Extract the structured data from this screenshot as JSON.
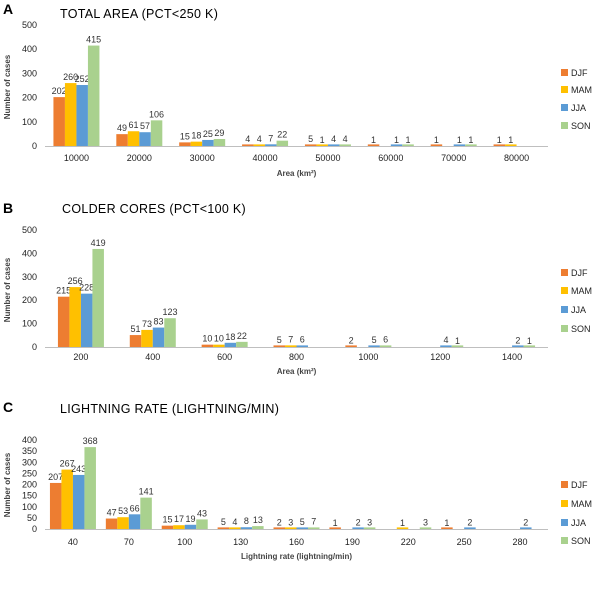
{
  "colors": {
    "DJF": "#ED7D31",
    "MAM": "#FFC000",
    "JJA": "#5B9BD5",
    "SON": "#A9D18E"
  },
  "chart_data": [
    {
      "type": "bar",
      "panel": "A",
      "title": "TOTAL AREA (PCT<250 K)",
      "xlabel": "Area (km²)",
      "ylabel": "Number of cases",
      "ylim": [
        0,
        500
      ],
      "yticks": [
        "0",
        "100",
        "200",
        "300",
        "400",
        "500"
      ],
      "grid": false,
      "legend_position": "right",
      "categories": [
        "10000",
        "20000",
        "30000",
        "40000",
        "50000",
        "60000",
        "70000",
        "80000"
      ],
      "series": [
        {
          "name": "DJF",
          "values": [
            202,
            49,
            15,
            4,
            5,
            1,
            1,
            1
          ]
        },
        {
          "name": "MAM",
          "values": [
            260,
            61,
            18,
            4,
            1,
            0,
            0,
            1
          ]
        },
        {
          "name": "JJA",
          "values": [
            252,
            57,
            25,
            7,
            4,
            1,
            1,
            0
          ]
        },
        {
          "name": "SON",
          "values": [
            415,
            106,
            29,
            22,
            4,
            1,
            1,
            0
          ]
        }
      ],
      "labels": [
        [
          "202",
          "49",
          "15",
          "4",
          "5",
          "1",
          "1",
          "1"
        ],
        [
          "260",
          "61",
          "18",
          "4",
          "1",
          "",
          "",
          "1"
        ],
        [
          "252",
          "57",
          "25",
          "7",
          "4",
          "1",
          "1",
          ""
        ],
        [
          "415",
          "106",
          "29",
          "22",
          "4",
          "1",
          "1",
          ""
        ]
      ]
    },
    {
      "type": "bar",
      "panel": "B",
      "title": "COLDER CORES (PCT<100 K)",
      "xlabel": "Area (km²)",
      "ylabel": "Number of cases",
      "ylim": [
        0,
        500
      ],
      "yticks": [
        "0",
        "100",
        "200",
        "300",
        "400",
        "500"
      ],
      "grid": false,
      "legend_position": "right",
      "categories": [
        "200",
        "400",
        "600",
        "800",
        "1000",
        "1200",
        "1400"
      ],
      "series": [
        {
          "name": "DJF",
          "values": [
            215,
            51,
            10,
            5,
            2,
            0,
            0
          ]
        },
        {
          "name": "MAM",
          "values": [
            256,
            73,
            10,
            7,
            0,
            0,
            0
          ]
        },
        {
          "name": "JJA",
          "values": [
            228,
            83,
            18,
            6,
            5,
            4,
            2
          ]
        },
        {
          "name": "SON",
          "values": [
            419,
            123,
            22,
            0,
            6,
            1,
            1
          ]
        }
      ],
      "labels": [
        [
          "215",
          "51",
          "10",
          "5",
          "2",
          "",
          ""
        ],
        [
          "256",
          "73",
          "10",
          "7",
          "",
          "",
          ""
        ],
        [
          "228",
          "83",
          "18",
          "6",
          "5",
          "4",
          "2"
        ],
        [
          "419",
          "123",
          "22",
          "",
          "6",
          "1",
          "1"
        ]
      ]
    },
    {
      "type": "bar",
      "panel": "C",
      "title": "LIGHTNING RATE (LIGHTNING/MIN)",
      "xlabel": "Lightning rate (lightning/min)",
      "ylabel": "Number of cases",
      "ylim": [
        0,
        400
      ],
      "yticks": [
        "0",
        "50",
        "100",
        "150",
        "200",
        "250",
        "300",
        "350",
        "400"
      ],
      "grid": false,
      "legend_position": "right",
      "categories": [
        "40",
        "70",
        "100",
        "130",
        "160",
        "190",
        "220",
        "250",
        "280"
      ],
      "series": [
        {
          "name": "DJF",
          "values": [
            207,
            47,
            15,
            5,
            2,
            1,
            0,
            1,
            0
          ]
        },
        {
          "name": "MAM",
          "values": [
            267,
            53,
            17,
            4,
            3,
            0,
            1,
            0,
            0
          ]
        },
        {
          "name": "JJA",
          "values": [
            243,
            66,
            19,
            8,
            5,
            2,
            0,
            2,
            2
          ]
        },
        {
          "name": "SON",
          "values": [
            368,
            141,
            43,
            13,
            7,
            3,
            3,
            0,
            0
          ]
        }
      ],
      "labels": [
        [
          "207",
          "47",
          "15",
          "5",
          "2",
          "1",
          "",
          "1",
          ""
        ],
        [
          "267",
          "53",
          "17",
          "4",
          "3",
          "",
          "1",
          "",
          ""
        ],
        [
          "243",
          "66",
          "19",
          "8",
          "5",
          "2",
          "",
          "2",
          "2"
        ],
        [
          "368",
          "141",
          "43",
          "13",
          "7",
          "3",
          "3",
          "",
          ""
        ]
      ]
    }
  ]
}
